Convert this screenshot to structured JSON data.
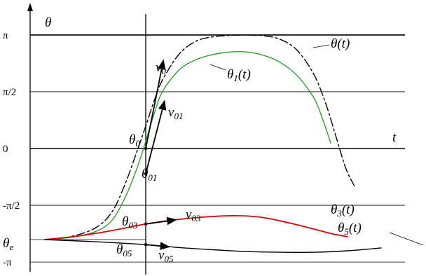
{
  "axes": {
    "y_label": "θ",
    "x_label": "t",
    "y_ticks": [
      {
        "label": "π",
        "value": 3.1416
      },
      {
        "label": "π/2",
        "value": 1.5708
      },
      {
        "label": "0",
        "value": 0
      },
      {
        "label": "-π/2",
        "value": -1.5708
      },
      {
        "label": "-π",
        "value": -3.1416
      }
    ],
    "theta_e_label": {
      "main": "θ",
      "sub": "e"
    },
    "theta_e_value": -2.52
  },
  "colors": {
    "theta": "#000000",
    "theta1": "#2ca02c",
    "theta3": "#e00000",
    "theta5": "#000000"
  },
  "curves": [
    {
      "id": "theta",
      "label": "θ(t)",
      "style": "dashed",
      "points": [
        [
          -6.0,
          -2.52
        ],
        [
          -4.5,
          -2.44
        ],
        [
          -3.0,
          -2.2
        ],
        [
          -2.0,
          -1.75
        ],
        [
          -1.2,
          -0.95
        ],
        [
          -0.5,
          -0.05
        ],
        [
          0.0,
          0.62
        ],
        [
          0.5,
          1.32
        ],
        [
          1.0,
          1.9
        ],
        [
          2.0,
          2.62
        ],
        [
          3.0,
          2.97
        ],
        [
          4.0,
          3.09
        ],
        [
          5.0,
          3.13
        ],
        [
          6.0,
          3.14
        ],
        [
          7.0,
          3.12
        ],
        [
          8.0,
          3.02
        ],
        [
          9.0,
          2.72
        ],
        [
          10.0,
          2.05
        ],
        [
          10.7,
          1.25
        ],
        [
          11.3,
          0.35
        ],
        [
          11.9,
          -0.55
        ],
        [
          12.4,
          -1.03
        ]
      ]
    },
    {
      "id": "theta1",
      "label": {
        "main": "θ",
        "sub": "1",
        "tail": "(t)"
      },
      "style": "solid",
      "points": [
        [
          -6.0,
          -2.52
        ],
        [
          -4.5,
          -2.46
        ],
        [
          -3.0,
          -2.3
        ],
        [
          -2.0,
          -1.98
        ],
        [
          -1.2,
          -1.33
        ],
        [
          -0.5,
          -0.52
        ],
        [
          0.0,
          0.2
        ],
        [
          0.5,
          0.96
        ],
        [
          1.0,
          1.58
        ],
        [
          2.0,
          2.18
        ],
        [
          3.0,
          2.46
        ],
        [
          4.0,
          2.6
        ],
        [
          5.0,
          2.67
        ],
        [
          6.0,
          2.67
        ],
        [
          7.0,
          2.58
        ],
        [
          8.0,
          2.38
        ],
        [
          9.0,
          2.02
        ],
        [
          10.0,
          1.4
        ],
        [
          10.5,
          0.84
        ],
        [
          11.0,
          0.15
        ]
      ]
    },
    {
      "id": "theta3",
      "label": {
        "main": "θ",
        "sub": "3",
        "tail": "(t)"
      },
      "style": "solid",
      "points": [
        [
          -6.0,
          -2.52
        ],
        [
          -4.0,
          -2.42
        ],
        [
          -2.0,
          -2.27
        ],
        [
          0.0,
          -2.09
        ],
        [
          2.0,
          -1.96
        ],
        [
          4.0,
          -1.88
        ],
        [
          5.5,
          -1.86
        ],
        [
          7.0,
          -1.91
        ],
        [
          9.0,
          -2.11
        ],
        [
          11.0,
          -2.35
        ],
        [
          12.0,
          -2.44
        ]
      ]
    },
    {
      "id": "theta5",
      "label": {
        "main": "θ",
        "sub": "5",
        "tail": "(t)"
      },
      "style": "solid",
      "points": [
        [
          -6.0,
          -2.52
        ],
        [
          -3.0,
          -2.58
        ],
        [
          0.0,
          -2.66
        ],
        [
          2.0,
          -2.74
        ],
        [
          4.0,
          -2.8
        ],
        [
          6.0,
          -2.85
        ],
        [
          8.0,
          -2.87
        ],
        [
          10.0,
          -2.87
        ],
        [
          12.0,
          -2.83
        ],
        [
          14.0,
          -2.75
        ]
      ]
    }
  ],
  "tangents": [
    {
      "id": "v0",
      "label": {
        "main": "v",
        "sub": "0"
      },
      "from": [
        0.0,
        0.0
      ],
      "to": [
        1.05,
        2.44
      ]
    },
    {
      "id": "v01",
      "label": {
        "main": "v",
        "sub": "01"
      },
      "from": [
        0.0,
        -0.7
      ],
      "to": [
        1.12,
        1.32
      ]
    },
    {
      "id": "v03",
      "label": {
        "main": "v",
        "sub": "03"
      },
      "from": [
        0.0,
        -2.09
      ],
      "to": [
        1.8,
        -1.97
      ]
    },
    {
      "id": "v05",
      "label": {
        "main": "v",
        "sub": "05"
      },
      "from": [
        0.0,
        -2.66
      ],
      "to": [
        1.4,
        -2.72
      ]
    }
  ],
  "points": [
    {
      "id": "theta0",
      "label": {
        "main": "θ",
        "sub": "0"
      },
      "at": [
        0.0,
        0.0
      ]
    },
    {
      "id": "theta01",
      "label": {
        "main": "θ",
        "sub": "01"
      },
      "at": [
        0.0,
        -0.7
      ]
    },
    {
      "id": "theta03",
      "label": {
        "main": "θ",
        "sub": "03"
      },
      "at": [
        0.0,
        -2.09
      ]
    },
    {
      "id": "theta05",
      "label": {
        "main": "θ",
        "sub": "05"
      },
      "at": [
        0.0,
        -2.66
      ]
    }
  ]
}
